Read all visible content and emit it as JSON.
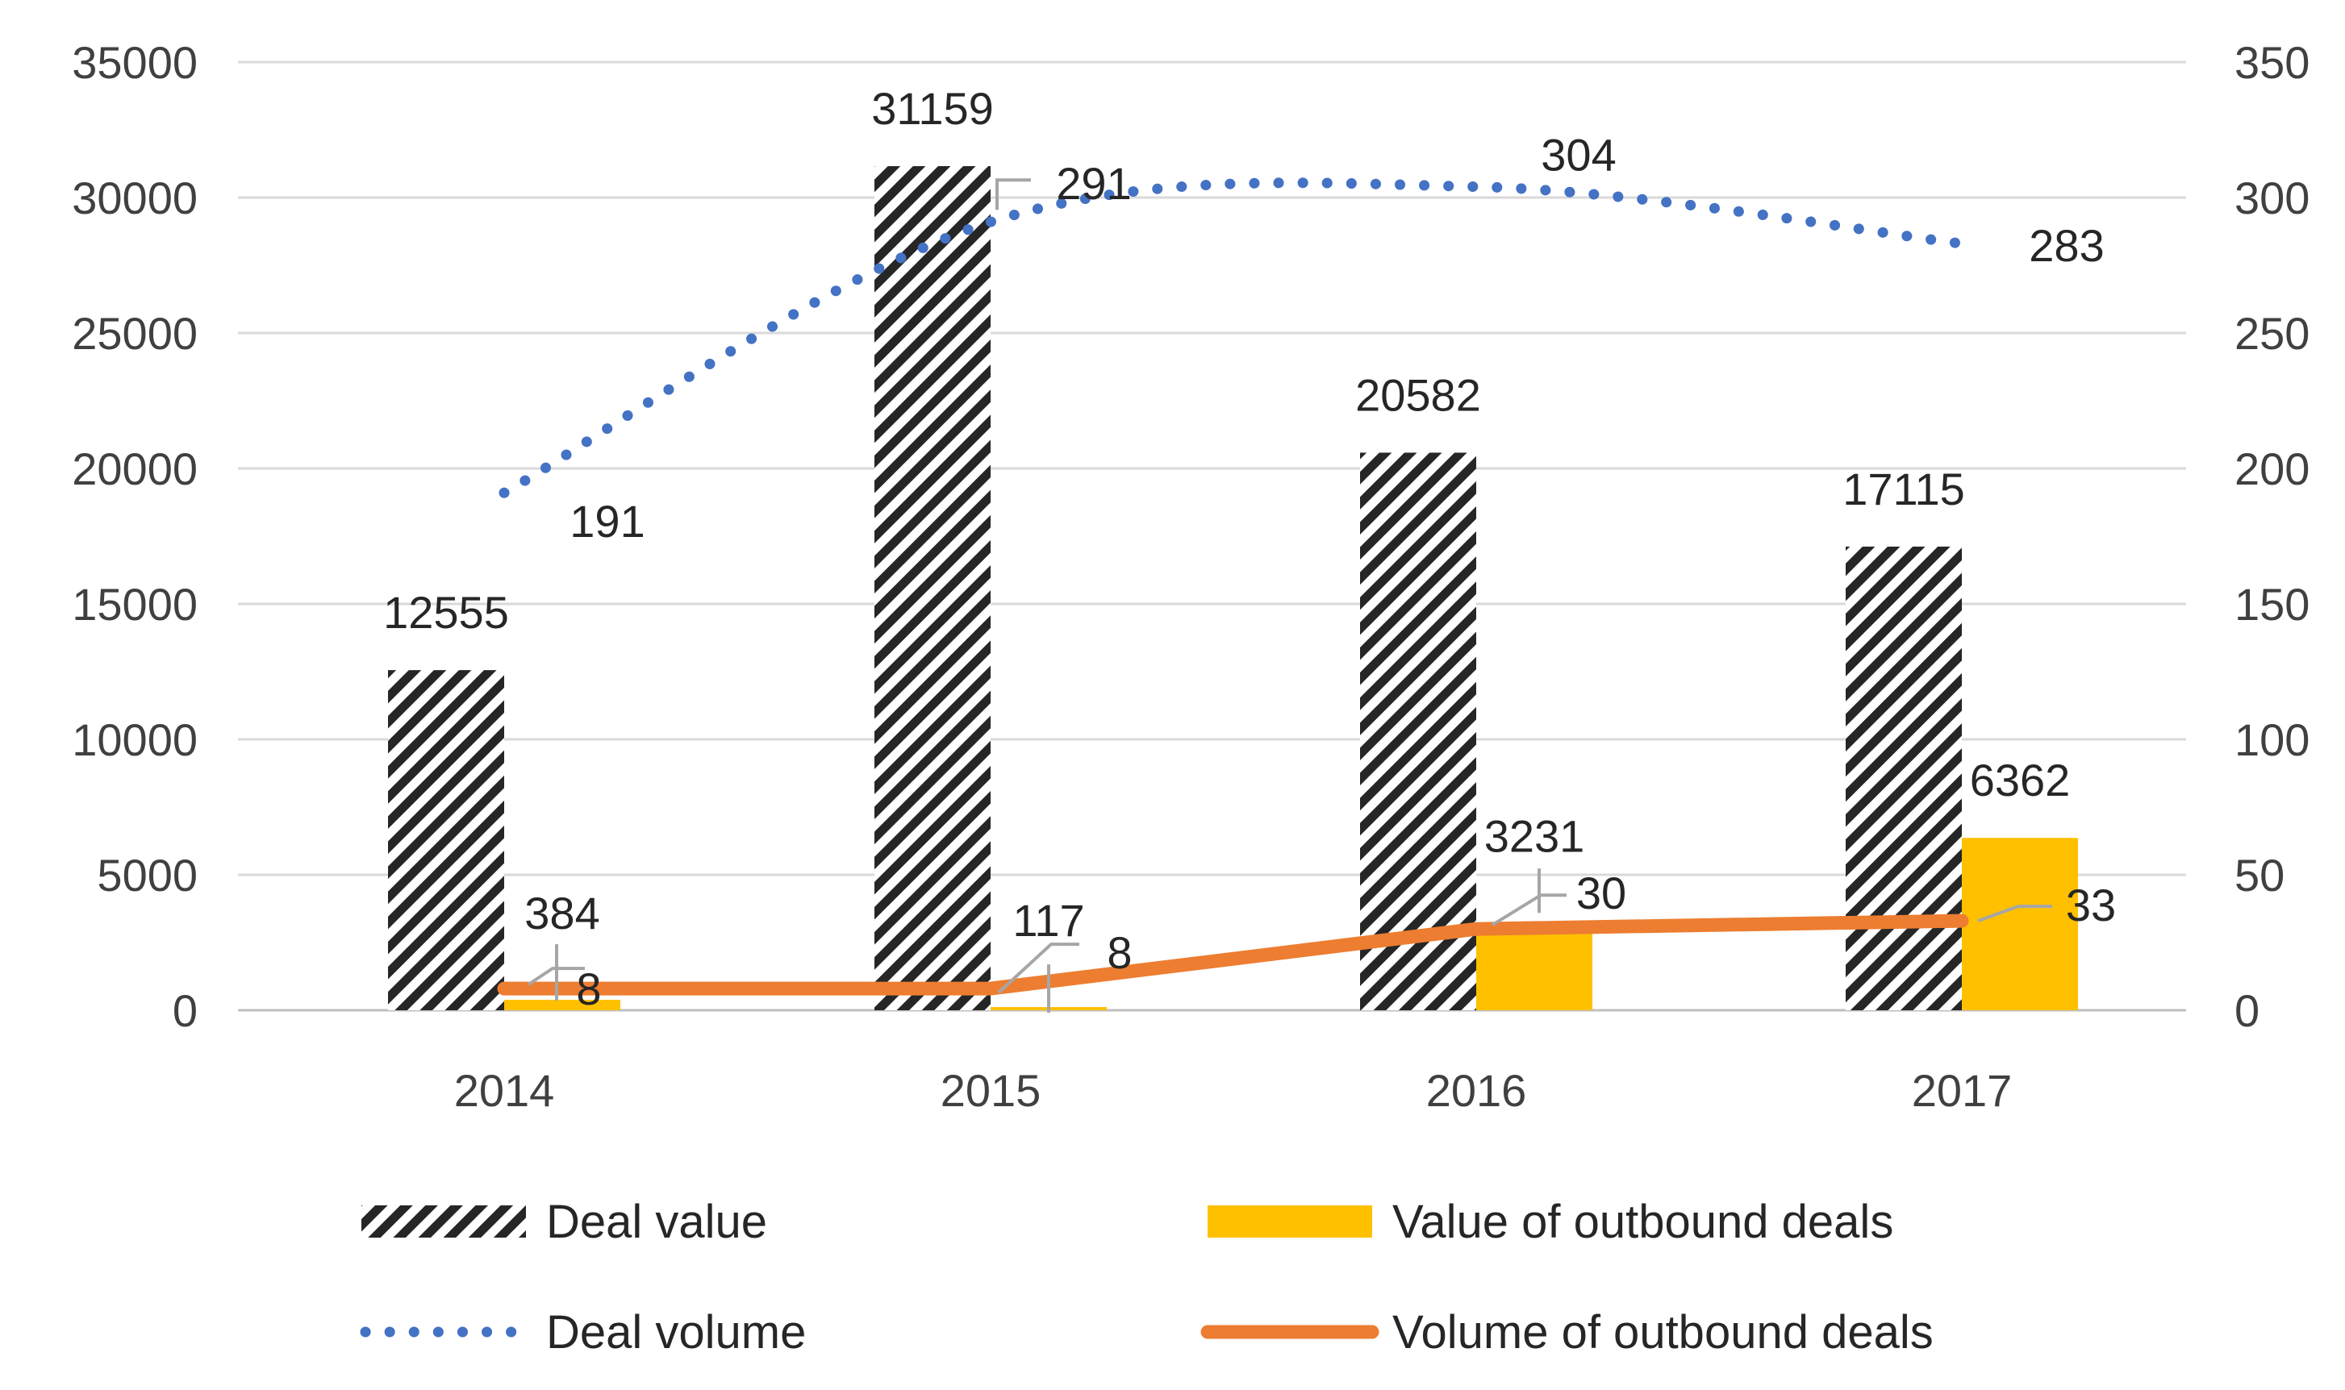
{
  "chart_data": {
    "type": "bar",
    "title": "",
    "xlabel": "",
    "ylabel": "",
    "categories": [
      "2014",
      "2015",
      "2016",
      "2017"
    ],
    "y_left": {
      "ylim": [
        0,
        35000
      ],
      "ticks": [
        "0",
        "5000",
        "10000",
        "15000",
        "20000",
        "25000",
        "30000",
        "35000"
      ]
    },
    "y_right": {
      "ylim": [
        0,
        350
      ],
      "ticks": [
        "0",
        "50",
        "100",
        "150",
        "200",
        "250",
        "300",
        "350"
      ]
    },
    "grid": true,
    "legend_position": "bottom",
    "series": [
      {
        "name": "Deal value",
        "kind": "bar",
        "axis": "left",
        "pattern": "diagonal-hatch",
        "color": "#262626",
        "values": [
          12555,
          31159,
          20582,
          17115
        ],
        "labels": [
          "12555",
          "31159",
          "20582",
          "17115"
        ]
      },
      {
        "name": "Value of outbound deals",
        "kind": "bar",
        "axis": "left",
        "color": "#FFC000",
        "values": [
          384,
          117,
          3231,
          6362
        ],
        "labels": [
          "384",
          "117",
          "3231",
          "6362"
        ]
      },
      {
        "name": "Deal volume",
        "kind": "line",
        "style": "dotted",
        "axis": "right",
        "color": "#4472C4",
        "values": [
          191,
          291,
          304,
          283
        ],
        "labels": [
          "191",
          "291",
          "304",
          "283"
        ]
      },
      {
        "name": "Volume of outbound deals",
        "kind": "line",
        "style": "solid",
        "axis": "right",
        "color": "#ED7D31",
        "values": [
          8,
          8,
          30,
          33
        ],
        "labels": [
          "8",
          "8",
          "30",
          "33"
        ]
      }
    ]
  }
}
